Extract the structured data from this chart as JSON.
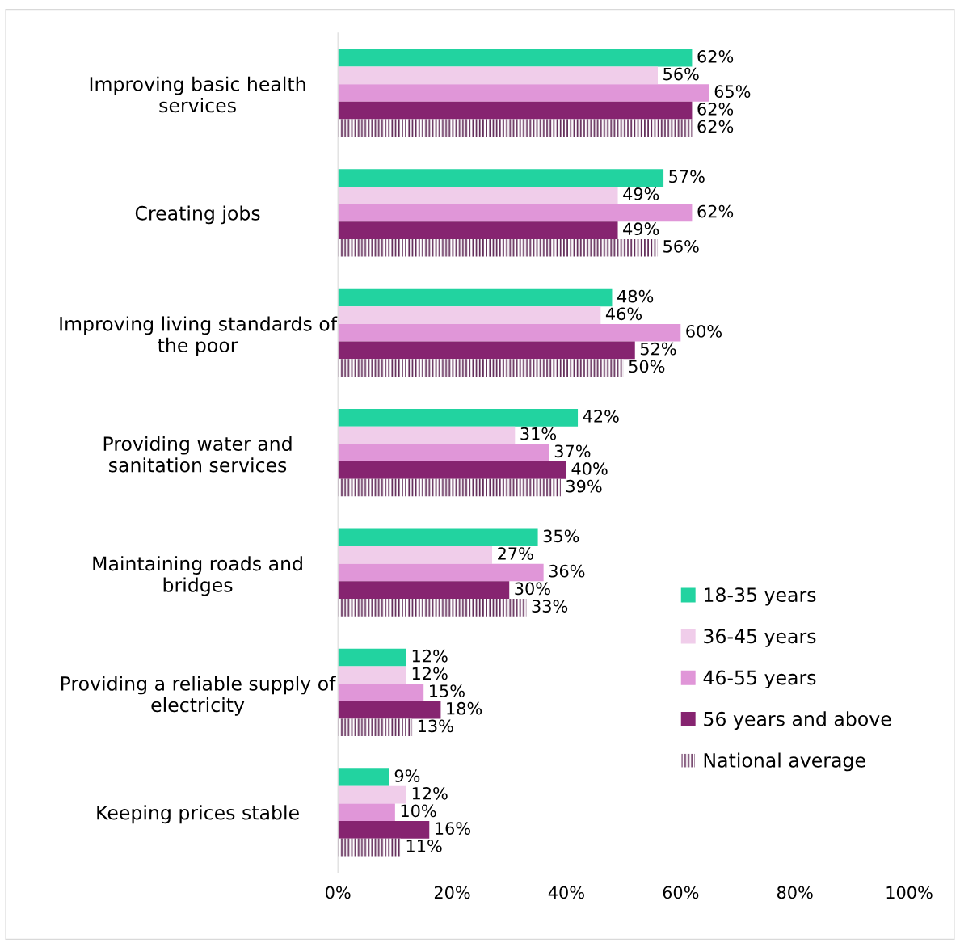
{
  "chart_data": {
    "type": "bar",
    "orientation": "horizontal",
    "categories": [
      "Improving basic health\nservices",
      "Creating jobs",
      "Improving living standards of\nthe poor",
      "Providing water and\nsanitation services",
      "Maintaining roads and\nbridges",
      "Providing a reliable supply of\nelectricity",
      "Keeping prices stable"
    ],
    "series": [
      {
        "name": "18-35 years",
        "color": "#22d3a0",
        "values": [
          62,
          57,
          48,
          42,
          35,
          12,
          9
        ],
        "value_labels": [
          "62%",
          "57%",
          "48%",
          "42%",
          "35%",
          "12%",
          "9%"
        ]
      },
      {
        "name": "36-45 years",
        "color": "#f0cdea",
        "values": [
          56,
          49,
          46,
          31,
          27,
          12,
          12
        ],
        "value_labels": [
          "56%",
          "49%",
          "46%",
          "31%",
          "27%",
          "12%",
          "12%"
        ]
      },
      {
        "name": "46-55 years",
        "color": "#e096d8",
        "values": [
          65,
          62,
          60,
          37,
          36,
          15,
          10
        ],
        "value_labels": [
          "65%",
          "62%",
          "60%",
          "37%",
          "36%",
          "15%",
          "10%"
        ]
      },
      {
        "name": "56 years and above",
        "color": "#862470",
        "values": [
          62,
          49,
          52,
          40,
          30,
          18,
          16
        ],
        "value_labels": [
          "62%",
          "49%",
          "52%",
          "40%",
          "30%",
          "18%",
          "16%"
        ]
      },
      {
        "name": "National average",
        "color": "#5a2050",
        "values": [
          62,
          56,
          50,
          39,
          33,
          13,
          11
        ],
        "value_labels": [
          "62%",
          "56%",
          "50%",
          "39%",
          "33%",
          "13%",
          "11%"
        ]
      }
    ],
    "xlim": [
      0,
      100
    ],
    "xticks": [
      {
        "value": 0,
        "label": "0%"
      },
      {
        "value": 20,
        "label": "20%"
      },
      {
        "value": 40,
        "label": "40%"
      },
      {
        "value": 60,
        "label": "60%"
      },
      {
        "value": 80,
        "label": "80%"
      },
      {
        "value": 100,
        "label": "100%"
      }
    ],
    "grid": false,
    "legend": "bottom right"
  }
}
